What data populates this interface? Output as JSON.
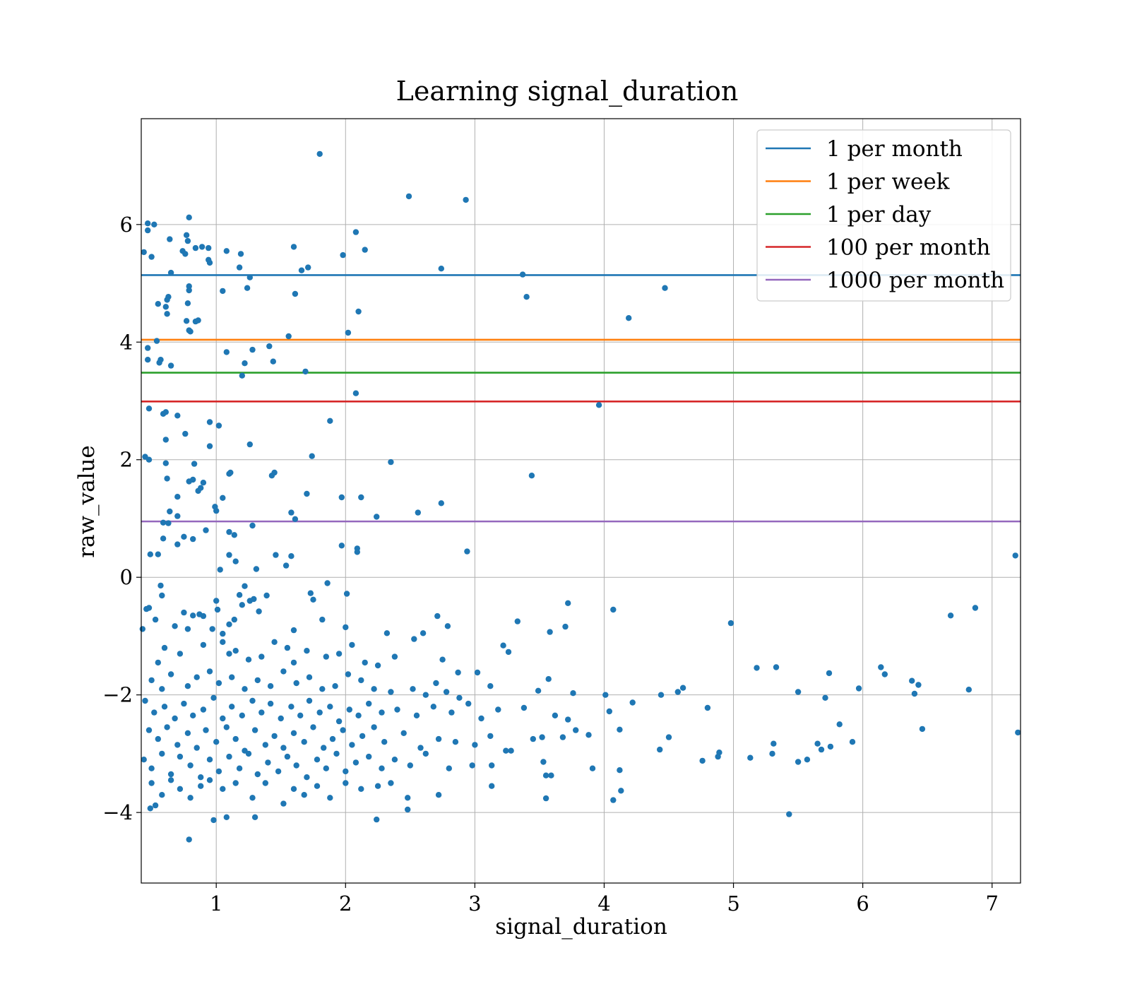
{
  "chart_data": {
    "type": "scatter",
    "title": "Learning signal_duration",
    "xlabel": "signal_duration",
    "ylabel": "raw_value",
    "xlim": [
      0.42,
      7.22
    ],
    "ylim": [
      -5.2,
      7.8
    ],
    "xticks": [
      1,
      2,
      3,
      4,
      5,
      6,
      7
    ],
    "yticks": [
      -4,
      -2,
      0,
      2,
      4,
      6
    ],
    "xtick_labels": [
      "1",
      "2",
      "3",
      "4",
      "5",
      "6",
      "7"
    ],
    "ytick_labels": [
      "−4",
      "−2",
      "0",
      "2",
      "4",
      "6"
    ],
    "grid": true,
    "legend_position": "top-right",
    "point_color": "#1f77b4",
    "hlines": [
      {
        "label": "1 per month",
        "y": 5.14,
        "color": "#1f77b4"
      },
      {
        "label": "1 per week",
        "y": 4.04,
        "color": "#ff7f0e"
      },
      {
        "label": "1 per day",
        "y": 3.48,
        "color": "#2ca02c"
      },
      {
        "label": "100 per month",
        "y": 2.99,
        "color": "#d62728"
      },
      {
        "label": "1000 per month",
        "y": 0.95,
        "color": "#9467bd"
      }
    ],
    "points": [
      [
        1.8,
        7.2
      ],
      [
        2.49,
        6.48
      ],
      [
        2.93,
        6.42
      ],
      [
        0.47,
        6.02
      ],
      [
        0.52,
        6.0
      ],
      [
        0.79,
        6.12
      ],
      [
        0.47,
        5.9
      ],
      [
        0.44,
        5.53
      ],
      [
        0.5,
        5.45
      ],
      [
        0.64,
        5.75
      ],
      [
        0.74,
        5.55
      ],
      [
        0.76,
        5.5
      ],
      [
        0.77,
        5.82
      ],
      [
        0.78,
        5.72
      ],
      [
        0.84,
        5.6
      ],
      [
        0.89,
        5.62
      ],
      [
        0.94,
        5.6
      ],
      [
        0.95,
        5.35
      ],
      [
        0.94,
        5.4
      ],
      [
        1.08,
        5.55
      ],
      [
        1.19,
        5.5
      ],
      [
        1.18,
        5.27
      ],
      [
        1.26,
        5.1
      ],
      [
        1.24,
        4.92
      ],
      [
        1.6,
        5.62
      ],
      [
        1.66,
        5.22
      ],
      [
        1.71,
        5.27
      ],
      [
        1.98,
        5.48
      ],
      [
        2.08,
        5.87
      ],
      [
        2.15,
        5.57
      ],
      [
        2.74,
        5.25
      ],
      [
        3.37,
        5.15
      ],
      [
        0.65,
        5.18
      ],
      [
        0.63,
        4.77
      ],
      [
        0.62,
        4.72
      ],
      [
        0.55,
        4.65
      ],
      [
        0.61,
        4.6
      ],
      [
        0.62,
        4.48
      ],
      [
        0.79,
        4.95
      ],
      [
        0.79,
        4.88
      ],
      [
        0.78,
        4.66
      ],
      [
        1.05,
        4.87
      ],
      [
        1.61,
        4.82
      ],
      [
        3.4,
        4.77
      ],
      [
        4.47,
        4.92
      ],
      [
        0.77,
        4.36
      ],
      [
        0.84,
        4.35
      ],
      [
        0.86,
        4.37
      ],
      [
        0.79,
        4.2
      ],
      [
        0.8,
        4.18
      ],
      [
        1.56,
        4.1
      ],
      [
        2.02,
        4.16
      ],
      [
        2.1,
        4.52
      ],
      [
        4.19,
        4.41
      ],
      [
        0.54,
        4.02
      ],
      [
        0.47,
        3.9
      ],
      [
        0.47,
        3.7
      ],
      [
        0.57,
        3.7
      ],
      [
        0.56,
        3.65
      ],
      [
        0.65,
        3.6
      ],
      [
        1.08,
        3.83
      ],
      [
        1.28,
        3.87
      ],
      [
        1.41,
        3.93
      ],
      [
        1.44,
        3.67
      ],
      [
        1.22,
        3.64
      ],
      [
        1.2,
        3.43
      ],
      [
        1.69,
        3.5
      ],
      [
        2.08,
        3.13
      ],
      [
        0.48,
        2.87
      ],
      [
        0.59,
        2.78
      ],
      [
        0.61,
        2.81
      ],
      [
        0.7,
        2.75
      ],
      [
        0.95,
        2.64
      ],
      [
        1.02,
        2.58
      ],
      [
        0.61,
        2.34
      ],
      [
        0.76,
        2.44
      ],
      [
        0.95,
        2.23
      ],
      [
        1.26,
        2.26
      ],
      [
        1.88,
        2.66
      ],
      [
        3.96,
        2.93
      ],
      [
        0.45,
        2.05
      ],
      [
        0.48,
        2.0
      ],
      [
        0.61,
        1.94
      ],
      [
        0.83,
        1.93
      ],
      [
        0.62,
        1.68
      ],
      [
        0.79,
        1.63
      ],
      [
        0.82,
        1.66
      ],
      [
        0.9,
        1.61
      ],
      [
        1.1,
        1.76
      ],
      [
        1.11,
        1.78
      ],
      [
        1.43,
        1.73
      ],
      [
        1.45,
        1.78
      ],
      [
        1.74,
        2.06
      ],
      [
        2.35,
        1.96
      ],
      [
        3.44,
        1.73
      ],
      [
        0.7,
        1.37
      ],
      [
        0.86,
        1.47
      ],
      [
        0.88,
        1.52
      ],
      [
        1.05,
        1.35
      ],
      [
        1.7,
        1.42
      ],
      [
        1.97,
        1.36
      ],
      [
        2.12,
        1.36
      ],
      [
        2.74,
        1.26
      ],
      [
        2.56,
        1.1
      ],
      [
        0.64,
        1.12
      ],
      [
        0.7,
        1.04
      ],
      [
        0.59,
        0.93
      ],
      [
        0.63,
        0.92
      ],
      [
        0.99,
        1.2
      ],
      [
        1.0,
        1.13
      ],
      [
        1.58,
        1.1
      ],
      [
        1.61,
        0.99
      ],
      [
        2.24,
        1.03
      ],
      [
        0.59,
        0.66
      ],
      [
        0.7,
        0.56
      ],
      [
        0.75,
        0.69
      ],
      [
        0.82,
        0.65
      ],
      [
        0.92,
        0.8
      ],
      [
        1.1,
        0.77
      ],
      [
        1.14,
        0.72
      ],
      [
        1.28,
        0.88
      ],
      [
        0.49,
        0.39
      ],
      [
        0.55,
        0.39
      ],
      [
        1.1,
        0.38
      ],
      [
        1.15,
        0.27
      ],
      [
        1.03,
        0.13
      ],
      [
        1.31,
        0.14
      ],
      [
        1.46,
        0.38
      ],
      [
        1.54,
        0.2
      ],
      [
        1.58,
        0.36
      ],
      [
        1.97,
        0.54
      ],
      [
        2.09,
        0.49
      ],
      [
        2.09,
        0.43
      ],
      [
        2.94,
        0.44
      ],
      [
        7.18,
        0.37
      ],
      [
        0.57,
        -0.14
      ],
      [
        0.58,
        -0.31
      ],
      [
        0.46,
        -0.54
      ],
      [
        0.48,
        -0.52
      ],
      [
        0.43,
        -0.88
      ],
      [
        0.53,
        -0.72
      ],
      [
        0.68,
        -0.83
      ],
      [
        0.75,
        -0.6
      ],
      [
        0.78,
        -0.88
      ],
      [
        0.82,
        -0.65
      ],
      [
        0.87,
        -0.63
      ],
      [
        0.9,
        -0.66
      ],
      [
        0.97,
        -0.88
      ],
      [
        1.0,
        -0.4
      ],
      [
        1.01,
        -0.55
      ],
      [
        1.05,
        -0.96
      ],
      [
        1.1,
        -0.8
      ],
      [
        1.14,
        -0.72
      ],
      [
        1.18,
        -0.3
      ],
      [
        1.2,
        -0.47
      ],
      [
        1.22,
        -0.15
      ],
      [
        1.26,
        -0.4
      ],
      [
        1.29,
        -0.37
      ],
      [
        1.33,
        -0.58
      ],
      [
        1.39,
        -0.31
      ],
      [
        1.6,
        -0.9
      ],
      [
        1.73,
        -0.27
      ],
      [
        1.75,
        -0.38
      ],
      [
        1.82,
        -0.72
      ],
      [
        1.86,
        -0.1
      ],
      [
        2.01,
        -0.28
      ],
      [
        2.0,
        -0.85
      ],
      [
        2.71,
        -0.66
      ],
      [
        2.79,
        -0.83
      ],
      [
        3.33,
        -0.75
      ],
      [
        3.7,
        -0.84
      ],
      [
        3.72,
        -0.44
      ],
      [
        4.07,
        -0.55
      ],
      [
        4.98,
        -0.78
      ],
      [
        6.68,
        -0.65
      ],
      [
        6.87,
        -0.52
      ],
      [
        0.55,
        -1.45
      ],
      [
        0.6,
        -1.2
      ],
      [
        0.72,
        -1.3
      ],
      [
        0.9,
        -1.15
      ],
      [
        1.05,
        -1.1
      ],
      [
        1.1,
        -1.3
      ],
      [
        1.15,
        -1.25
      ],
      [
        1.25,
        -1.4
      ],
      [
        1.35,
        -1.35
      ],
      [
        1.45,
        -1.1
      ],
      [
        1.55,
        -1.2
      ],
      [
        1.6,
        -1.45
      ],
      [
        1.7,
        -1.25
      ],
      [
        1.85,
        -1.35
      ],
      [
        1.95,
        -1.3
      ],
      [
        2.05,
        -1.15
      ],
      [
        2.15,
        -1.45
      ],
      [
        2.25,
        -1.5
      ],
      [
        2.32,
        -0.95
      ],
      [
        2.38,
        -1.35
      ],
      [
        2.53,
        -1.05
      ],
      [
        2.6,
        -0.95
      ],
      [
        2.75,
        -1.4
      ],
      [
        2.87,
        -1.62
      ],
      [
        3.02,
        -1.62
      ],
      [
        3.22,
        -1.16
      ],
      [
        3.26,
        -1.27
      ],
      [
        3.58,
        -0.93
      ],
      [
        0.5,
        -1.75
      ],
      [
        0.58,
        -1.9
      ],
      [
        0.65,
        -1.65
      ],
      [
        0.78,
        -1.85
      ],
      [
        0.85,
        -1.7
      ],
      [
        0.95,
        -1.6
      ],
      [
        1.02,
        -1.8
      ],
      [
        1.12,
        -1.7
      ],
      [
        1.22,
        -1.9
      ],
      [
        1.32,
        -1.75
      ],
      [
        1.42,
        -1.85
      ],
      [
        1.52,
        -1.6
      ],
      [
        1.62,
        -1.8
      ],
      [
        1.72,
        -1.7
      ],
      [
        1.82,
        -1.9
      ],
      [
        1.92,
        -1.85
      ],
      [
        2.02,
        -1.65
      ],
      [
        2.12,
        -1.75
      ],
      [
        2.22,
        -1.9
      ],
      [
        2.35,
        -1.95
      ],
      [
        2.52,
        -1.9
      ],
      [
        2.62,
        -2.0
      ],
      [
        2.7,
        -1.8
      ],
      [
        2.78,
        -1.95
      ],
      [
        2.88,
        -2.05
      ],
      [
        3.12,
        -1.85
      ],
      [
        3.49,
        -1.93
      ],
      [
        3.57,
        -1.73
      ],
      [
        3.76,
        -1.97
      ],
      [
        4.01,
        -2.0
      ],
      [
        4.44,
        -2.0
      ],
      [
        4.57,
        -1.95
      ],
      [
        4.61,
        -1.88
      ],
      [
        5.18,
        -1.54
      ],
      [
        5.33,
        -1.53
      ],
      [
        5.5,
        -1.95
      ],
      [
        5.71,
        -2.05
      ],
      [
        5.74,
        -1.63
      ],
      [
        5.97,
        -1.89
      ],
      [
        6.14,
        -1.53
      ],
      [
        6.17,
        -1.65
      ],
      [
        6.38,
        -1.76
      ],
      [
        6.4,
        -1.98
      ],
      [
        6.43,
        -1.83
      ],
      [
        6.82,
        -1.91
      ],
      [
        0.45,
        -2.1
      ],
      [
        0.52,
        -2.3
      ],
      [
        0.6,
        -2.2
      ],
      [
        0.68,
        -2.4
      ],
      [
        0.75,
        -2.15
      ],
      [
        0.82,
        -2.35
      ],
      [
        0.9,
        -2.25
      ],
      [
        0.98,
        -2.05
      ],
      [
        1.05,
        -2.4
      ],
      [
        1.12,
        -2.2
      ],
      [
        1.2,
        -2.35
      ],
      [
        1.28,
        -2.1
      ],
      [
        1.35,
        -2.3
      ],
      [
        1.42,
        -2.15
      ],
      [
        1.5,
        -2.4
      ],
      [
        1.58,
        -2.2
      ],
      [
        1.65,
        -2.35
      ],
      [
        1.72,
        -2.1
      ],
      [
        1.8,
        -2.3
      ],
      [
        1.88,
        -2.2
      ],
      [
        1.95,
        -2.45
      ],
      [
        2.03,
        -2.25
      ],
      [
        2.1,
        -2.35
      ],
      [
        2.18,
        -2.15
      ],
      [
        2.28,
        -2.3
      ],
      [
        2.4,
        -2.25
      ],
      [
        2.55,
        -2.35
      ],
      [
        2.68,
        -2.2
      ],
      [
        2.82,
        -2.3
      ],
      [
        2.95,
        -2.15
      ],
      [
        3.05,
        -2.4
      ],
      [
        3.18,
        -2.25
      ],
      [
        3.38,
        -2.22
      ],
      [
        3.62,
        -2.35
      ],
      [
        4.04,
        -2.28
      ],
      [
        4.22,
        -2.13
      ],
      [
        4.8,
        -2.22
      ],
      [
        0.48,
        -2.6
      ],
      [
        0.55,
        -2.75
      ],
      [
        0.62,
        -2.55
      ],
      [
        0.7,
        -2.85
      ],
      [
        0.78,
        -2.65
      ],
      [
        0.85,
        -2.9
      ],
      [
        0.92,
        -2.6
      ],
      [
        1.0,
        -2.8
      ],
      [
        1.08,
        -2.55
      ],
      [
        1.15,
        -2.75
      ],
      [
        1.22,
        -2.95
      ],
      [
        1.3,
        -2.6
      ],
      [
        1.38,
        -2.85
      ],
      [
        1.45,
        -2.7
      ],
      [
        1.52,
        -2.9
      ],
      [
        1.6,
        -2.65
      ],
      [
        1.68,
        -2.8
      ],
      [
        1.75,
        -2.55
      ],
      [
        1.83,
        -2.9
      ],
      [
        1.9,
        -2.75
      ],
      [
        1.98,
        -2.6
      ],
      [
        2.05,
        -2.85
      ],
      [
        2.13,
        -2.7
      ],
      [
        2.22,
        -2.55
      ],
      [
        2.3,
        -2.8
      ],
      [
        2.45,
        -2.65
      ],
      [
        2.58,
        -2.9
      ],
      [
        2.72,
        -2.75
      ],
      [
        2.85,
        -2.8
      ],
      [
        3.0,
        -2.85
      ],
      [
        3.12,
        -2.7
      ],
      [
        3.28,
        -2.95
      ],
      [
        3.45,
        -2.75
      ],
      [
        3.52,
        -2.72
      ],
      [
        3.68,
        -2.72
      ],
      [
        3.72,
        -2.42
      ],
      [
        3.78,
        -2.6
      ],
      [
        3.88,
        -2.68
      ],
      [
        4.12,
        -2.59
      ],
      [
        4.5,
        -2.72
      ],
      [
        7.2,
        -2.64
      ],
      [
        6.46,
        -2.58
      ],
      [
        0.44,
        -3.1
      ],
      [
        0.5,
        -3.25
      ],
      [
        0.58,
        -3.0
      ],
      [
        0.65,
        -3.35
      ],
      [
        0.72,
        -3.05
      ],
      [
        0.8,
        -3.2
      ],
      [
        0.88,
        -3.4
      ],
      [
        0.95,
        -3.1
      ],
      [
        1.02,
        -3.3
      ],
      [
        1.1,
        -3.05
      ],
      [
        1.18,
        -3.25
      ],
      [
        1.25,
        -3.0
      ],
      [
        1.32,
        -3.35
      ],
      [
        1.4,
        -3.15
      ],
      [
        1.48,
        -3.3
      ],
      [
        1.55,
        -3.05
      ],
      [
        1.62,
        -3.2
      ],
      [
        1.7,
        -3.4
      ],
      [
        1.78,
        -3.1
      ],
      [
        1.85,
        -3.25
      ],
      [
        1.93,
        -3.0
      ],
      [
        2.0,
        -3.3
      ],
      [
        2.08,
        -3.15
      ],
      [
        2.18,
        -3.05
      ],
      [
        2.28,
        -3.25
      ],
      [
        2.38,
        -3.1
      ],
      [
        2.5,
        -3.2
      ],
      [
        2.62,
        -3.0
      ],
      [
        2.8,
        -3.25
      ],
      [
        2.98,
        -3.2
      ],
      [
        3.13,
        -3.2
      ],
      [
        3.24,
        -2.95
      ],
      [
        3.53,
        -3.14
      ],
      [
        3.91,
        -3.25
      ],
      [
        4.12,
        -3.28
      ],
      [
        4.43,
        -2.93
      ],
      [
        4.76,
        -3.12
      ],
      [
        4.88,
        -3.05
      ],
      [
        4.89,
        -2.98
      ],
      [
        5.13,
        -3.07
      ],
      [
        5.3,
        -3.0
      ],
      [
        5.31,
        -2.83
      ],
      [
        5.5,
        -3.14
      ],
      [
        5.57,
        -3.1
      ],
      [
        5.65,
        -2.83
      ],
      [
        5.68,
        -2.93
      ],
      [
        5.75,
        -2.88
      ],
      [
        5.82,
        -2.5
      ],
      [
        5.92,
        -2.8
      ],
      [
        0.5,
        -3.5
      ],
      [
        0.58,
        -3.7
      ],
      [
        0.65,
        -3.45
      ],
      [
        0.72,
        -3.6
      ],
      [
        0.8,
        -3.75
      ],
      [
        0.88,
        -3.55
      ],
      [
        0.95,
        -3.45
      ],
      [
        1.05,
        -3.6
      ],
      [
        1.15,
        -3.5
      ],
      [
        1.28,
        -3.75
      ],
      [
        1.38,
        -3.5
      ],
      [
        1.52,
        -3.85
      ],
      [
        1.6,
        -3.6
      ],
      [
        1.68,
        -3.7
      ],
      [
        1.78,
        -3.55
      ],
      [
        1.88,
        -3.75
      ],
      [
        2.0,
        -3.5
      ],
      [
        2.12,
        -3.6
      ],
      [
        2.25,
        -3.55
      ],
      [
        2.35,
        -3.5
      ],
      [
        2.48,
        -3.75
      ],
      [
        2.72,
        -3.7
      ],
      [
        3.13,
        -3.55
      ],
      [
        3.55,
        -3.37
      ],
      [
        3.59,
        -3.37
      ],
      [
        3.55,
        -3.76
      ],
      [
        4.07,
        -3.79
      ],
      [
        4.13,
        -3.63
      ],
      [
        0.49,
        -3.93
      ],
      [
        0.53,
        -3.88
      ],
      [
        0.79,
        -4.46
      ],
      [
        0.98,
        -4.13
      ],
      [
        1.08,
        -4.08
      ],
      [
        1.3,
        -4.08
      ],
      [
        2.24,
        -4.12
      ],
      [
        2.48,
        -3.95
      ],
      [
        5.43,
        -4.03
      ]
    ]
  }
}
